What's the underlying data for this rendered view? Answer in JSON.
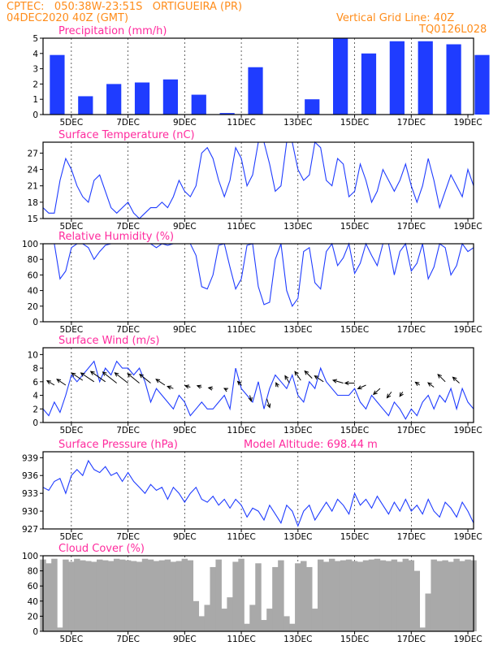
{
  "header": {
    "line1_left": "CPTEC:   050:38W-23:51S   ORTIGUEIRA (PR)",
    "line2_left": "04DEC2020 40Z (GMT)",
    "line1_right": "Vertical Grid Line: 40Z",
    "line2_right": "TQ0126L028"
  },
  "colors": {
    "accent": "#ff8c1a",
    "titles": "#ff2a9d",
    "series": "#1f3cff",
    "cloud": "#a9a9a9"
  },
  "chart_data": [
    {
      "type": "bar",
      "title": "Precipitation (mm/h)",
      "x_ticks": [
        "5DEC",
        "7DEC",
        "9DEC",
        "11DEC",
        "13DEC",
        "15DEC",
        "17DEC",
        "19DEC"
      ],
      "ylim": [
        0,
        5
      ],
      "y_ticks": [
        "0",
        "1",
        "2",
        "3",
        "4",
        "5"
      ],
      "x": [
        "4DEC",
        "5DEC",
        "6DEC",
        "7DEC",
        "8DEC",
        "9DEC",
        "10DEC",
        "11DEC",
        "12DEC",
        "13DEC",
        "14DEC",
        "15DEC",
        "16DEC",
        "17DEC",
        "18DEC",
        "19DEC"
      ],
      "values": [
        3.9,
        1.2,
        2.0,
        2.1,
        2.3,
        1.3,
        0.1,
        3.1,
        0.0,
        1.0,
        5.0,
        4.0,
        4.8,
        4.8,
        4.6,
        3.9
      ]
    },
    {
      "type": "line",
      "title": "Surface Temperature (nC)",
      "x_ticks": [
        "5DEC",
        "7DEC",
        "9DEC",
        "11DEC",
        "13DEC",
        "15DEC",
        "17DEC",
        "19DEC"
      ],
      "ylim": [
        15,
        29
      ],
      "y_ticks": [
        "15",
        "18",
        "21",
        "24",
        "27"
      ],
      "x": [
        4.0,
        4.2,
        4.4,
        4.6,
        4.8,
        5.0,
        5.2,
        5.4,
        5.6,
        5.8,
        6.0,
        6.2,
        6.4,
        6.6,
        6.8,
        7.0,
        7.2,
        7.4,
        7.6,
        7.8,
        8.0,
        8.2,
        8.4,
        8.6,
        8.8,
        9.0,
        9.2,
        9.4,
        9.6,
        9.8,
        10.0,
        10.2,
        10.4,
        10.6,
        10.8,
        11.0,
        11.2,
        11.4,
        11.6,
        11.8,
        12.0,
        12.2,
        12.4,
        12.6,
        12.8,
        13.0,
        13.2,
        13.4,
        13.6,
        13.8,
        14.0,
        14.2,
        14.4,
        14.6,
        14.8,
        15.0,
        15.2,
        15.4,
        15.6,
        15.8,
        16.0,
        16.2,
        16.4,
        16.6,
        16.8,
        17.0,
        17.2,
        17.4,
        17.6,
        17.8,
        18.0,
        18.2,
        18.4,
        18.6,
        18.8,
        19.0,
        19.2
      ],
      "values": [
        17,
        16,
        16,
        22,
        26,
        24,
        21,
        19,
        18,
        22,
        23,
        20,
        17,
        16,
        17,
        18,
        16,
        15,
        16,
        17,
        17,
        18,
        17,
        19,
        22,
        20,
        19,
        21,
        27,
        28,
        26,
        22,
        19,
        22,
        28,
        26,
        21,
        23,
        29,
        29,
        25,
        20,
        21,
        29,
        29,
        24,
        22,
        23,
        29,
        28,
        22,
        21,
        26,
        25,
        19,
        20,
        25,
        22,
        18,
        20,
        24,
        22,
        20,
        22,
        25,
        21,
        18,
        21,
        26,
        22,
        17,
        20,
        23,
        21,
        19,
        24,
        21
      ]
    },
    {
      "type": "line",
      "title": "Relative Humidity (%)",
      "x_ticks": [
        "5DEC",
        "7DEC",
        "9DEC",
        "11DEC",
        "13DEC",
        "15DEC",
        "17DEC",
        "19DEC"
      ],
      "ylim": [
        0,
        100
      ],
      "y_ticks": [
        "0",
        "20",
        "40",
        "60",
        "80",
        "100"
      ],
      "x": [
        4.0,
        4.2,
        4.4,
        4.6,
        4.8,
        5.0,
        5.2,
        5.4,
        5.6,
        5.8,
        6.0,
        6.2,
        6.4,
        6.6,
        6.8,
        7.0,
        7.2,
        7.4,
        7.6,
        7.8,
        8.0,
        8.2,
        8.4,
        8.6,
        8.8,
        9.0,
        9.2,
        9.4,
        9.6,
        9.8,
        10.0,
        10.2,
        10.4,
        10.6,
        10.8,
        11.0,
        11.2,
        11.4,
        11.6,
        11.8,
        12.0,
        12.2,
        12.4,
        12.6,
        12.8,
        13.0,
        13.2,
        13.4,
        13.6,
        13.8,
        14.0,
        14.2,
        14.4,
        14.6,
        14.8,
        15.0,
        15.2,
        15.4,
        15.6,
        15.8,
        16.0,
        16.2,
        16.4,
        16.6,
        16.8,
        17.0,
        17.2,
        17.4,
        17.6,
        17.8,
        18.0,
        18.2,
        18.4,
        18.6,
        18.8,
        19.0,
        19.2
      ],
      "values": [
        100,
        100,
        100,
        55,
        65,
        95,
        100,
        100,
        95,
        80,
        90,
        98,
        100,
        100,
        100,
        100,
        100,
        100,
        100,
        100,
        95,
        100,
        98,
        100,
        100,
        100,
        100,
        85,
        45,
        42,
        60,
        98,
        100,
        70,
        42,
        55,
        98,
        100,
        45,
        22,
        25,
        80,
        100,
        40,
        20,
        30,
        90,
        95,
        50,
        42,
        90,
        100,
        72,
        82,
        100,
        62,
        75,
        100,
        85,
        72,
        100,
        100,
        60,
        90,
        100,
        65,
        75,
        100,
        55,
        70,
        100,
        95,
        60,
        72,
        100,
        90,
        95
      ]
    },
    {
      "type": "line",
      "title": "Surface Wind (m/s)",
      "x_ticks": [
        "5DEC",
        "7DEC",
        "9DEC",
        "11DEC",
        "13DEC",
        "15DEC",
        "17DEC",
        "19DEC"
      ],
      "ylim": [
        0,
        11
      ],
      "y_ticks": [
        "0",
        "2",
        "4",
        "6",
        "8",
        "10"
      ],
      "x": [
        4.0,
        4.2,
        4.4,
        4.6,
        4.8,
        5.0,
        5.2,
        5.4,
        5.6,
        5.8,
        6.0,
        6.2,
        6.4,
        6.6,
        6.8,
        7.0,
        7.2,
        7.4,
        7.6,
        7.8,
        8.0,
        8.2,
        8.4,
        8.6,
        8.8,
        9.0,
        9.2,
        9.4,
        9.6,
        9.8,
        10.0,
        10.2,
        10.4,
        10.6,
        10.8,
        11.0,
        11.2,
        11.4,
        11.6,
        11.8,
        12.0,
        12.2,
        12.4,
        12.6,
        12.8,
        13.0,
        13.2,
        13.4,
        13.6,
        13.8,
        14.0,
        14.2,
        14.4,
        14.6,
        14.8,
        15.0,
        15.2,
        15.4,
        15.6,
        15.8,
        16.0,
        16.2,
        16.4,
        16.6,
        16.8,
        17.0,
        17.2,
        17.4,
        17.6,
        17.8,
        18.0,
        18.2,
        18.4,
        18.6,
        18.8,
        19.0,
        19.2
      ],
      "values": [
        2,
        1,
        3,
        1.5,
        4,
        7,
        6,
        7,
        8,
        9,
        6,
        8,
        7,
        9,
        8,
        8,
        7,
        8,
        6,
        3,
        5,
        4,
        3,
        2,
        4,
        3,
        1,
        2,
        3,
        2,
        2,
        3,
        4,
        2,
        8,
        5,
        4,
        3,
        6,
        2,
        5,
        7,
        6,
        5,
        7,
        4,
        3,
        6,
        5,
        8,
        6,
        5,
        4,
        4,
        4,
        5,
        3,
        2,
        4,
        3,
        2,
        1,
        3,
        2,
        0.5,
        2,
        1,
        3,
        4,
        2,
        4,
        3,
        5,
        2,
        5,
        3,
        2
      ]
    },
    {
      "type": "line",
      "title": "Surface Pressure (hPa)",
      "subtitle": "Model Altitude: 698.44 m",
      "x_ticks": [
        "5DEC",
        "7DEC",
        "9DEC",
        "11DEC",
        "13DEC",
        "15DEC",
        "17DEC",
        "19DEC"
      ],
      "ylim": [
        927,
        940
      ],
      "y_ticks": [
        "927",
        "930",
        "933",
        "936",
        "939"
      ],
      "x": [
        4.0,
        4.2,
        4.4,
        4.6,
        4.8,
        5.0,
        5.2,
        5.4,
        5.6,
        5.8,
        6.0,
        6.2,
        6.4,
        6.6,
        6.8,
        7.0,
        7.2,
        7.4,
        7.6,
        7.8,
        8.0,
        8.2,
        8.4,
        8.6,
        8.8,
        9.0,
        9.2,
        9.4,
        9.6,
        9.8,
        10.0,
        10.2,
        10.4,
        10.6,
        10.8,
        11.0,
        11.2,
        11.4,
        11.6,
        11.8,
        12.0,
        12.2,
        12.4,
        12.6,
        12.8,
        13.0,
        13.2,
        13.4,
        13.6,
        13.8,
        14.0,
        14.2,
        14.4,
        14.6,
        14.8,
        15.0,
        15.2,
        15.4,
        15.6,
        15.8,
        16.0,
        16.2,
        16.4,
        16.6,
        16.8,
        17.0,
        17.2,
        17.4,
        17.6,
        17.8,
        18.0,
        18.2,
        18.4,
        18.6,
        18.8,
        19.0,
        19.2
      ],
      "values": [
        934,
        933.5,
        935,
        935.5,
        933,
        936,
        937,
        936,
        938.5,
        937,
        936.5,
        937.5,
        936,
        936.5,
        935,
        936.5,
        935,
        934,
        933,
        934.5,
        933.5,
        934,
        932,
        934,
        933,
        931.5,
        933,
        934,
        932,
        931.5,
        932.5,
        931,
        932,
        930.5,
        932,
        931,
        929,
        930.5,
        930,
        928.5,
        931,
        929.5,
        928,
        931,
        930,
        927.5,
        930,
        931,
        928.5,
        930,
        931.5,
        930,
        932,
        931,
        929.5,
        933,
        931,
        932,
        930.5,
        932.5,
        931,
        929.5,
        931.5,
        930,
        932,
        930,
        931,
        929.5,
        932,
        930,
        929,
        931.5,
        930.5,
        929,
        931.5,
        930,
        928
      ]
    },
    {
      "type": "area",
      "title": "Cloud Cover (%)",
      "x_ticks": [
        "5DEC",
        "7DEC",
        "9DEC",
        "11DEC",
        "13DEC",
        "15DEC",
        "17DEC",
        "19DEC"
      ],
      "ylim": [
        0,
        100
      ],
      "y_ticks": [
        "0",
        "20",
        "40",
        "60",
        "80",
        "100"
      ],
      "x": [
        4.0,
        4.2,
        4.4,
        4.6,
        4.8,
        5.0,
        5.2,
        5.4,
        5.6,
        5.8,
        6.0,
        6.2,
        6.4,
        6.6,
        6.8,
        7.0,
        7.2,
        7.4,
        7.6,
        7.8,
        8.0,
        8.2,
        8.4,
        8.6,
        8.8,
        9.0,
        9.2,
        9.4,
        9.6,
        9.8,
        10.0,
        10.2,
        10.4,
        10.6,
        10.8,
        11.0,
        11.2,
        11.4,
        11.6,
        11.8,
        12.0,
        12.2,
        12.4,
        12.6,
        12.8,
        13.0,
        13.2,
        13.4,
        13.6,
        13.8,
        14.0,
        14.2,
        14.4,
        14.6,
        14.8,
        15.0,
        15.2,
        15.4,
        15.6,
        15.8,
        16.0,
        16.2,
        16.4,
        16.6,
        16.8,
        17.0,
        17.2,
        17.4,
        17.6,
        17.8,
        18.0,
        18.2,
        18.4,
        18.6,
        18.8,
        19.0,
        19.2
      ],
      "values": [
        95,
        90,
        96,
        5,
        95,
        92,
        96,
        94,
        93,
        92,
        95,
        94,
        93,
        96,
        95,
        94,
        93,
        92,
        96,
        95,
        93,
        94,
        95,
        92,
        93,
        96,
        94,
        40,
        20,
        35,
        85,
        95,
        30,
        45,
        92,
        96,
        10,
        35,
        90,
        15,
        30,
        85,
        94,
        20,
        10,
        90,
        93,
        85,
        30,
        95,
        92,
        96,
        93,
        94,
        95,
        93,
        92,
        94,
        95,
        96,
        94,
        93,
        95,
        92,
        96,
        94,
        80,
        5,
        50,
        95,
        93,
        94,
        92,
        96,
        93,
        95,
        94
      ]
    }
  ],
  "wind_arrows": {
    "x": [
      4.4,
      4.8,
      5.4,
      5.8,
      6.2,
      6.6,
      7.0,
      7.4,
      7.8,
      8.3,
      8.6,
      9.2,
      9.6,
      10.0,
      10.5,
      11.0,
      11.3,
      11.9,
      12.3,
      12.7,
      13.1,
      13.5,
      13.9,
      14.6,
      15.0,
      15.4,
      15.9,
      16.3,
      16.7,
      17.3,
      17.8,
      18.2,
      18.7
    ],
    "y": [
      5.5,
      5.5,
      6.2,
      6.0,
      6.0,
      5.8,
      5.8,
      5.8,
      5.8,
      5.5,
      5.0,
      5.2,
      5.2,
      5.0,
      4.8,
      5.5,
      4.0,
      3.5,
      5.2,
      5.8,
      6.2,
      6.5,
      6.0,
      5.8,
      5.8,
      5.5,
      5.0,
      4.5,
      4.5,
      5.5,
      5.2,
      6.0,
      5.8
    ],
    "dx": [
      -1.0,
      -1.2,
      -1.5,
      -1.8,
      -2.0,
      -1.9,
      -1.8,
      -1.6,
      -1.5,
      -1.2,
      -0.8,
      -0.7,
      -0.6,
      -0.6,
      -0.4,
      -0.5,
      0.2,
      0.4,
      -0.3,
      -0.6,
      -0.8,
      -1.0,
      -1.2,
      -1.4,
      -1.3,
      -1.1,
      -0.9,
      -0.6,
      -0.4,
      -0.6,
      -0.8,
      -1.0,
      -0.9
    ],
    "dy": [
      0.6,
      0.8,
      1.0,
      1.2,
      1.4,
      1.5,
      1.4,
      1.3,
      1.2,
      0.8,
      0.3,
      0.2,
      0.2,
      0.1,
      0.2,
      0.5,
      -0.8,
      -1.2,
      0.6,
      1.0,
      1.2,
      1.0,
      0.8,
      0.4,
      0.0,
      -0.5,
      -0.8,
      -0.8,
      -0.6,
      0.4,
      0.6,
      1.0,
      0.8
    ]
  }
}
